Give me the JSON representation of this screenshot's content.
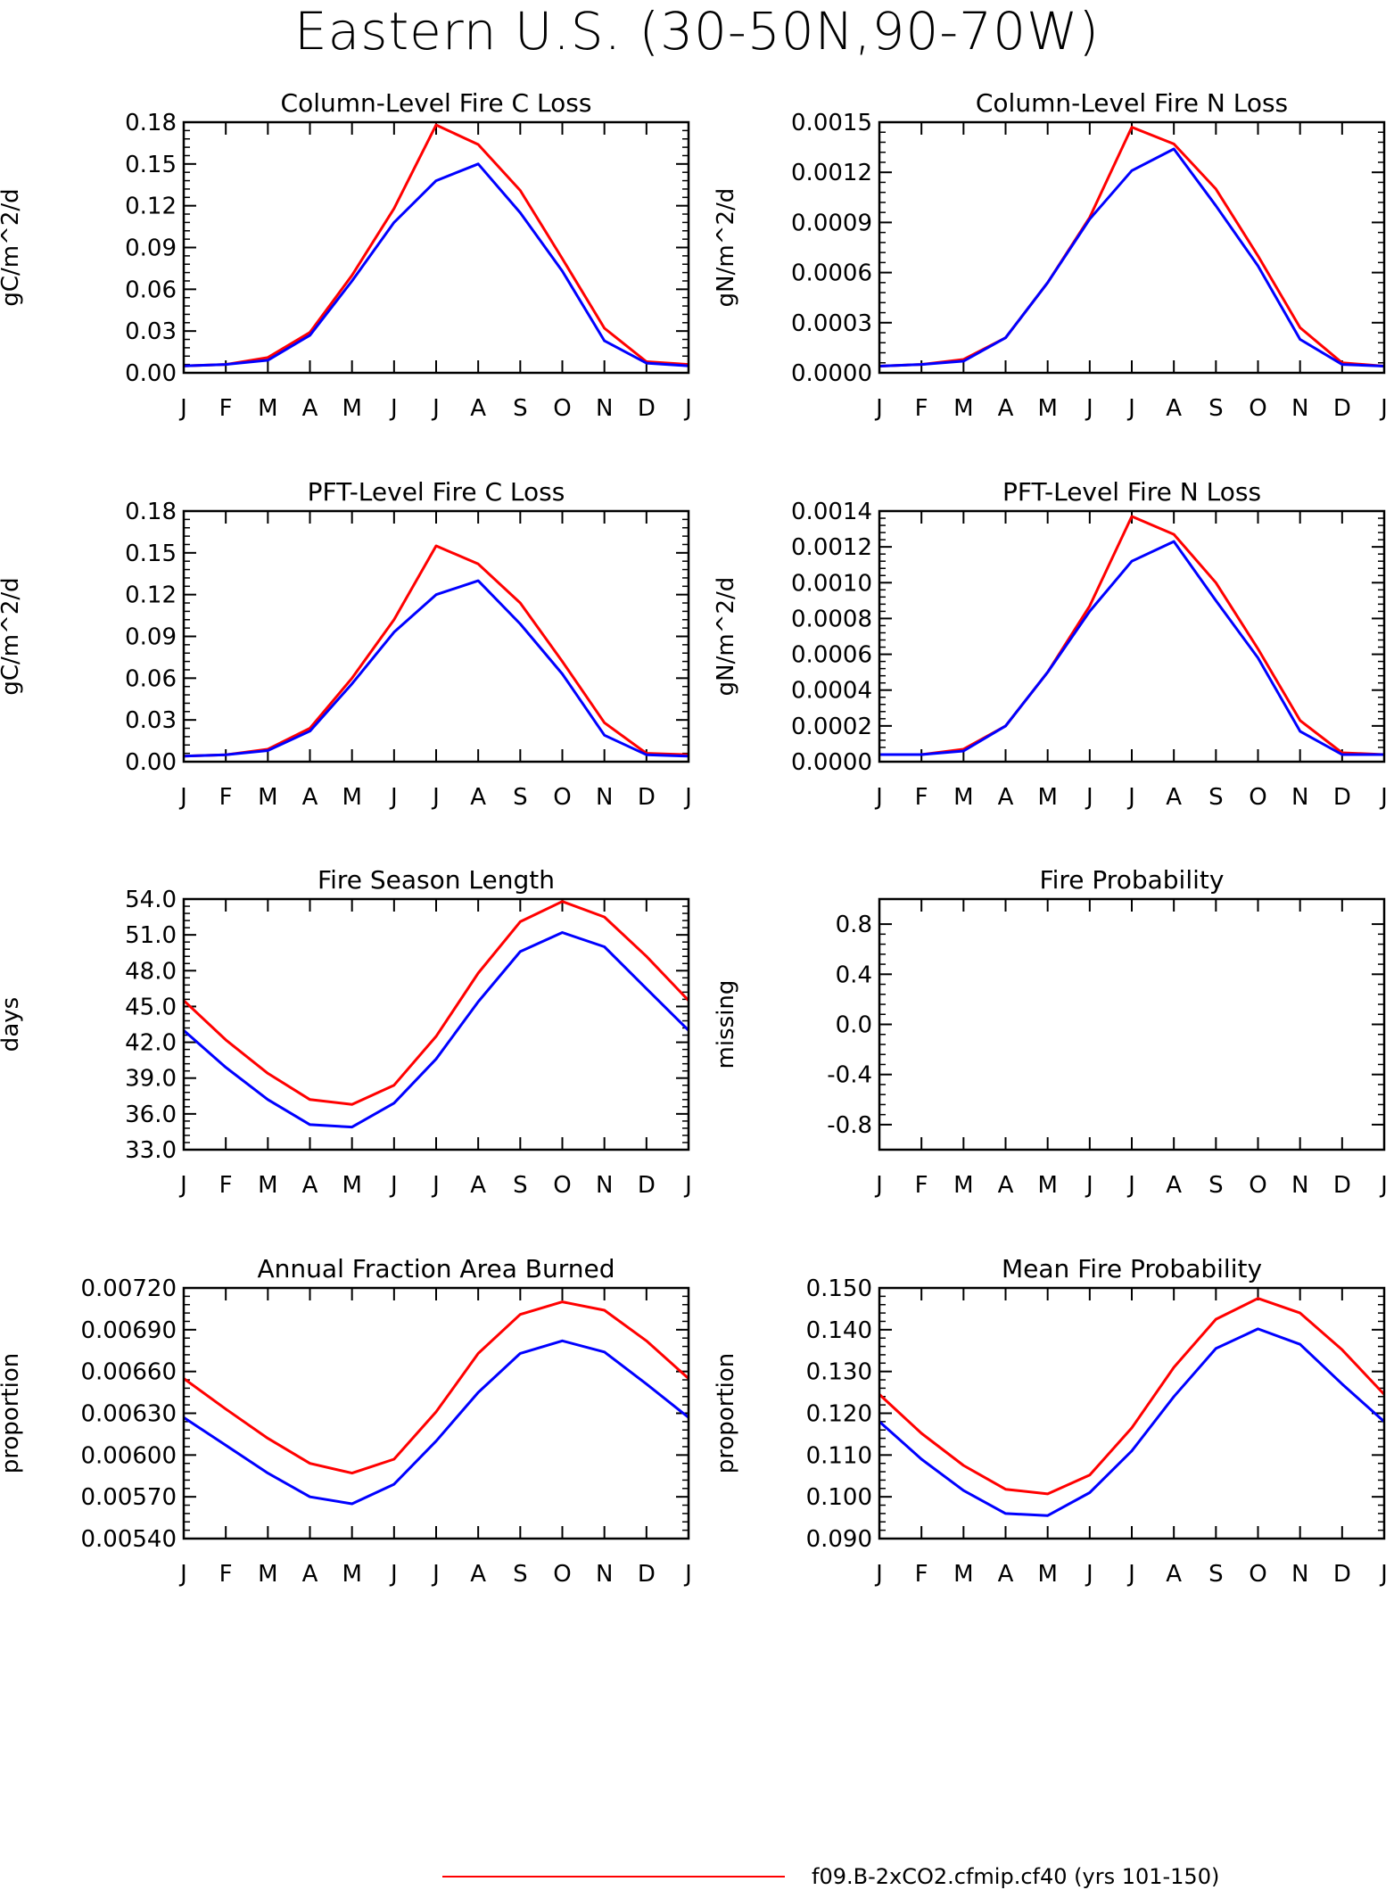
{
  "title": "Eastern U.S. (30-50N,90-70W)",
  "months": [
    "J",
    "F",
    "M",
    "A",
    "M",
    "J",
    "J",
    "A",
    "S",
    "O",
    "N",
    "D",
    "J"
  ],
  "series_colors": [
    "#ff0000",
    "#0000ff"
  ],
  "legend": {
    "entries": [
      {
        "label": "f09.B-2xCO2.cfmip.cf40 (yrs 101-150)",
        "color": "#ff0000"
      }
    ]
  },
  "chart_data": [
    {
      "type": "line",
      "title": "Column-Level Fire C Loss",
      "ylabel": "gC/m^2/d",
      "ylim": [
        0,
        0.18
      ],
      "yticks": [
        "0.00",
        "0.03",
        "0.06",
        "0.09",
        "0.12",
        "0.15",
        "0.18"
      ],
      "series": [
        {
          "color": "#ff0000",
          "values": [
            0.005,
            0.006,
            0.011,
            0.029,
            0.07,
            0.118,
            0.178,
            0.164,
            0.131,
            0.082,
            0.032,
            0.008,
            0.006
          ]
        },
        {
          "color": "#0000ff",
          "values": [
            0.005,
            0.006,
            0.009,
            0.027,
            0.066,
            0.108,
            0.138,
            0.15,
            0.115,
            0.073,
            0.023,
            0.007,
            0.005
          ]
        }
      ]
    },
    {
      "type": "line",
      "title": "Column-Level Fire N Loss",
      "ylabel": "gN/m^2/d",
      "ylim": [
        0,
        0.0015
      ],
      "yticks": [
        "0.0000",
        "0.0003",
        "0.0006",
        "0.0009",
        "0.0012",
        "0.0015"
      ],
      "series": [
        {
          "color": "#ff0000",
          "values": [
            4e-05,
            5e-05,
            8e-05,
            0.00021,
            0.00054,
            0.00093,
            0.00147,
            0.00137,
            0.0011,
            0.0007,
            0.00027,
            6e-05,
            4e-05
          ]
        },
        {
          "color": "#0000ff",
          "values": [
            4e-05,
            5e-05,
            7e-05,
            0.00021,
            0.00054,
            0.00092,
            0.00121,
            0.00134,
            0.001,
            0.00064,
            0.0002,
            5e-05,
            4e-05
          ]
        }
      ]
    },
    {
      "type": "line",
      "title": "PFT-Level Fire C Loss",
      "ylabel": "gC/m^2/d",
      "ylim": [
        0,
        0.18
      ],
      "yticks": [
        "0.00",
        "0.03",
        "0.06",
        "0.09",
        "0.12",
        "0.15",
        "0.18"
      ],
      "series": [
        {
          "color": "#ff0000",
          "values": [
            0.004,
            0.005,
            0.009,
            0.024,
            0.06,
            0.102,
            0.155,
            0.142,
            0.114,
            0.072,
            0.028,
            0.006,
            0.005
          ]
        },
        {
          "color": "#0000ff",
          "values": [
            0.004,
            0.005,
            0.008,
            0.022,
            0.056,
            0.093,
            0.12,
            0.13,
            0.099,
            0.063,
            0.019,
            0.005,
            0.004
          ]
        }
      ]
    },
    {
      "type": "line",
      "title": "PFT-Level Fire N Loss",
      "ylabel": "gN/m^2/d",
      "ylim": [
        0,
        0.0014
      ],
      "yticks": [
        "0.0000",
        "0.0002",
        "0.0004",
        "0.0006",
        "0.0008",
        "0.0010",
        "0.0012",
        "0.0014"
      ],
      "series": [
        {
          "color": "#ff0000",
          "values": [
            4e-05,
            4e-05,
            7e-05,
            0.0002,
            0.0005,
            0.00087,
            0.00137,
            0.00127,
            0.001,
            0.00063,
            0.00023,
            5e-05,
            4e-05
          ]
        },
        {
          "color": "#0000ff",
          "values": [
            4e-05,
            4e-05,
            6e-05,
            0.0002,
            0.0005,
            0.00084,
            0.00112,
            0.00123,
            0.0009,
            0.00058,
            0.00017,
            4e-05,
            4e-05
          ]
        }
      ]
    },
    {
      "type": "line",
      "title": "Fire Season Length",
      "ylabel": "days",
      "ylim": [
        33,
        54
      ],
      "yticks": [
        "33.0",
        "36.0",
        "39.0",
        "42.0",
        "45.0",
        "48.0",
        "51.0",
        "54.0"
      ],
      "series": [
        {
          "color": "#ff0000",
          "values": [
            45.5,
            42.2,
            39.4,
            37.2,
            36.8,
            38.4,
            42.5,
            47.8,
            52.1,
            53.8,
            52.5,
            49.2,
            45.5
          ]
        },
        {
          "color": "#0000ff",
          "values": [
            43.0,
            39.9,
            37.2,
            35.1,
            34.9,
            36.9,
            40.6,
            45.4,
            49.6,
            51.2,
            50.0,
            46.5,
            43.0
          ]
        }
      ]
    },
    {
      "type": "line",
      "title": "Fire Probability",
      "ylabel": "missing",
      "ylim": [
        -1,
        1
      ],
      "yticks": [
        "-0.8",
        "-0.4",
        "0.0",
        "0.4",
        "0.8"
      ],
      "series": []
    },
    {
      "type": "line",
      "title": "Annual Fraction Area Burned",
      "ylabel": "proportion",
      "ylim": [
        0.0054,
        0.0072
      ],
      "yticks": [
        "0.00540",
        "0.00570",
        "0.00600",
        "0.00630",
        "0.00660",
        "0.00690",
        "0.00720"
      ],
      "series": [
        {
          "color": "#ff0000",
          "values": [
            0.00655,
            0.00633,
            0.00612,
            0.00594,
            0.00587,
            0.00597,
            0.00631,
            0.00673,
            0.00701,
            0.0071,
            0.00704,
            0.00682,
            0.00655
          ]
        },
        {
          "color": "#0000ff",
          "values": [
            0.00627,
            0.00607,
            0.00587,
            0.0057,
            0.00565,
            0.00579,
            0.0061,
            0.00645,
            0.00673,
            0.00682,
            0.00674,
            0.00651,
            0.00627
          ]
        }
      ]
    },
    {
      "type": "line",
      "title": "Mean Fire Probability",
      "ylabel": "proportion",
      "ylim": [
        0.09,
        0.15
      ],
      "yticks": [
        "0.090",
        "0.100",
        "0.110",
        "0.120",
        "0.130",
        "0.140",
        "0.150"
      ],
      "series": [
        {
          "color": "#ff0000",
          "values": [
            0.1245,
            0.1152,
            0.1075,
            0.1018,
            0.1007,
            0.1052,
            0.1165,
            0.131,
            0.1425,
            0.1475,
            0.144,
            0.1352,
            0.1245
          ]
        },
        {
          "color": "#0000ff",
          "values": [
            0.118,
            0.109,
            0.1015,
            0.096,
            0.0955,
            0.101,
            0.111,
            0.124,
            0.1355,
            0.1402,
            0.1365,
            0.127,
            0.118
          ]
        }
      ]
    }
  ]
}
